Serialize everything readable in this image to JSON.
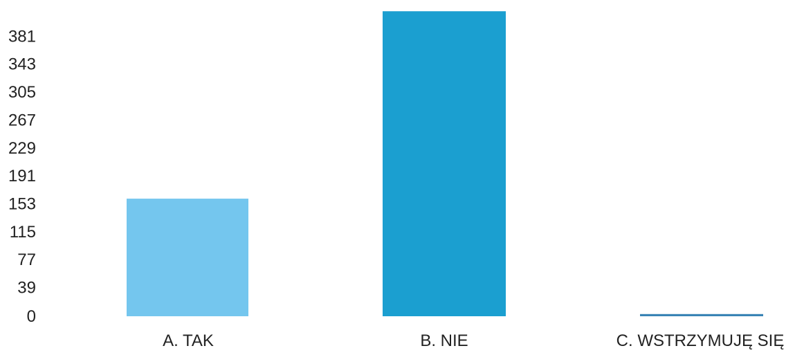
{
  "chart_data": {
    "type": "bar",
    "categories": [
      "A. TAK",
      "B. NIE",
      "C. WSTRZYMUJĘ SIĘ"
    ],
    "values": [
      160,
      415,
      3
    ],
    "yticks": [
      "0",
      "39",
      "77",
      "115",
      "153",
      "191",
      "229",
      "267",
      "305",
      "343",
      "381"
    ],
    "ylim": [
      0,
      419
    ],
    "bar_colors": [
      "#74c6ee",
      "#1b9fd0",
      "#3a84b5"
    ],
    "grid": false,
    "legend": "none"
  }
}
